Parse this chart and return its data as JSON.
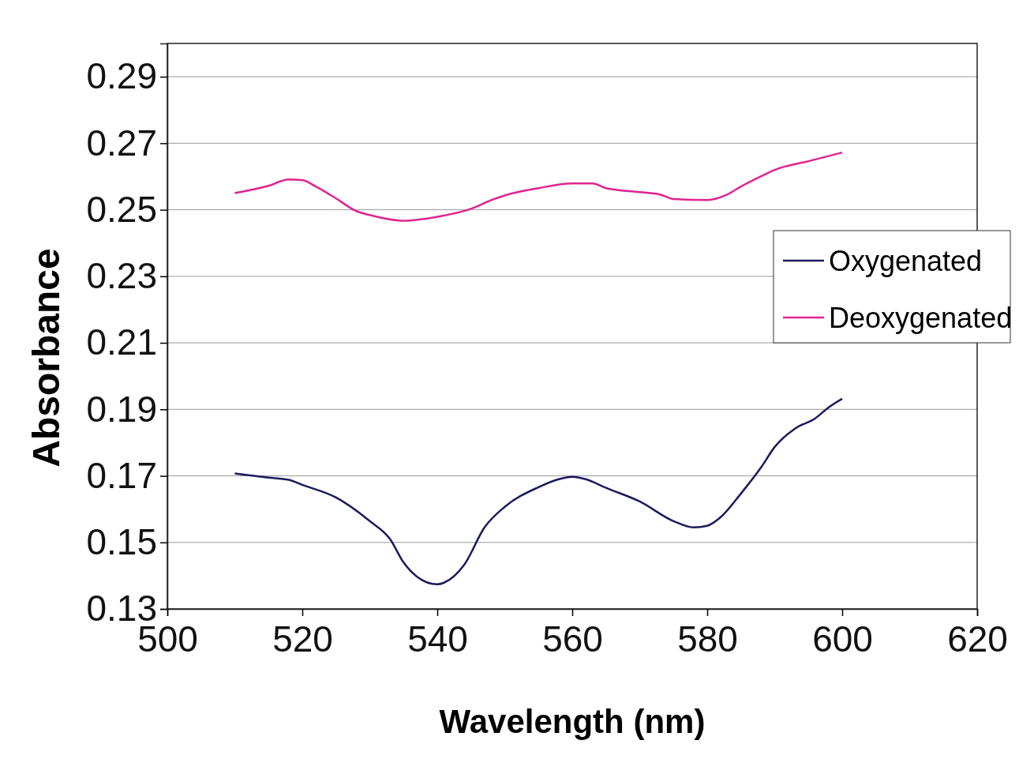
{
  "chart_data": {
    "type": "line",
    "xlabel": "Wavelength (nm)",
    "ylabel": "Absorbance",
    "xlim": [
      500,
      620
    ],
    "xticks": [
      500,
      520,
      540,
      560,
      580,
      600,
      620
    ],
    "ylim": [
      0.13,
      0.3
    ],
    "yticks": [
      {
        "value": 0.13,
        "label": "0.13"
      },
      {
        "value": 0.15,
        "label": "0.15"
      },
      {
        "value": 0.17,
        "label": "0.17"
      },
      {
        "value": 0.19,
        "label": "0.19"
      },
      {
        "value": 0.21,
        "label": "0.21"
      },
      {
        "value": 0.23,
        "label": "0.23"
      },
      {
        "value": 0.25,
        "label": "0.25"
      },
      {
        "value": 0.27,
        "label": "0.27"
      },
      {
        "value": 0.29,
        "label": "0.29"
      }
    ],
    "grid": "y",
    "legend": "right",
    "marker": "none",
    "line_style": "solid",
    "series": [
      {
        "name": "Oxygenated",
        "color": "#1a1a5e",
        "x": [
          510,
          515,
          518,
          520,
          525,
          530,
          533,
          535,
          537,
          540,
          541,
          544,
          547,
          550,
          555,
          558,
          560,
          562,
          565,
          570,
          575,
          578,
          580,
          582,
          585,
          588,
          590,
          593,
          596,
          598,
          600
        ],
        "values": [
          0.1707,
          0.1695,
          0.1688,
          0.1673,
          0.1635,
          0.1564,
          0.151,
          0.144,
          0.1397,
          0.1374,
          0.1379,
          0.1433,
          0.1545,
          0.1607,
          0.1666,
          0.169,
          0.1697,
          0.169,
          0.1664,
          0.1623,
          0.1564,
          0.1545,
          0.155,
          0.1576,
          0.1647,
          0.1726,
          0.1787,
          0.1842,
          0.1873,
          0.1906,
          0.1932
        ]
      },
      {
        "name": "Deoxygenated",
        "color": "#e0248f",
        "x": [
          510,
          515,
          518,
          520,
          522,
          525,
          528,
          530,
          535,
          540,
          545,
          548,
          550,
          555,
          560,
          563,
          565,
          570,
          573,
          575,
          580,
          583,
          585,
          588,
          590,
          595,
          600
        ],
        "values": [
          0.255,
          0.2572,
          0.2591,
          0.2589,
          0.257,
          0.2534,
          0.2496,
          0.2484,
          0.2467,
          0.2479,
          0.2503,
          0.2529,
          0.2543,
          0.2565,
          0.2579,
          0.2579,
          0.2565,
          0.2553,
          0.2546,
          0.2532,
          0.2529,
          0.2546,
          0.257,
          0.2601,
          0.262,
          0.2646,
          0.2672
        ]
      }
    ]
  }
}
